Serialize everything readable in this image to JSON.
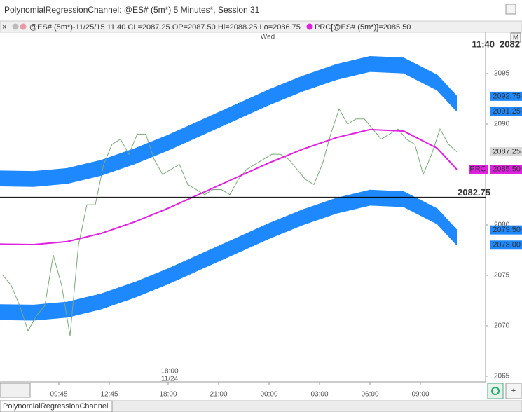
{
  "window": {
    "title": "PolynomialRegressionChannel: @ES# (5m*) 5 Minutes*, Session 31",
    "info": "@ES# (5m*)-11/25/15 11:40 CL=2087.25 OP=2087.50 Hi=2088.25 Lo=2086.75",
    "prc_info": "PRC[@ES# (5m*)]=2085.50",
    "corner_label": "M",
    "tab": "PolynomialRegressionChannel",
    "add_button": "+"
  },
  "chart_data": {
    "type": "line",
    "day_label": "Wed",
    "time_label": "11:40",
    "price_label": "2082",
    "session_label": [
      "18:00",
      "11/24"
    ],
    "xlim": [
      0,
      346
    ],
    "xticks": [
      {
        "value": 42,
        "label": "09:45"
      },
      {
        "value": 78,
        "label": "12:45"
      },
      {
        "value": 120,
        "label": "18:00"
      },
      {
        "value": 156,
        "label": "21:00"
      },
      {
        "value": 192,
        "label": "00:00"
      },
      {
        "value": 228,
        "label": "03:00"
      },
      {
        "value": 264,
        "label": "06:00"
      },
      {
        "value": 300,
        "label": "09:00"
      }
    ],
    "ylim": [
      2064.6,
      2099.2
    ],
    "yticks": [
      2065,
      2070,
      2075,
      2080,
      2090,
      2095
    ],
    "grid": false,
    "series": [
      {
        "color": "#7aa87a",
        "width": 1,
        "x": [
          2,
          8,
          14,
          20,
          26,
          32,
          38,
          44,
          50,
          56,
          62,
          68,
          74,
          80,
          86,
          92,
          98,
          104,
          110,
          116,
          122,
          128,
          134,
          140,
          146,
          152,
          158,
          164,
          170,
          176,
          182,
          188,
          194,
          200,
          206,
          212,
          218,
          224,
          230,
          236,
          242,
          248,
          254,
          260,
          266,
          272,
          278,
          284,
          290,
          296,
          302,
          308,
          314,
          320,
          326
        ],
        "values": [
          2075,
          2074,
          2072,
          2069.5,
          2071,
          2072,
          2077,
          2074,
          2069,
          2078,
          2082,
          2082,
          2086,
          2088,
          2088.5,
          2087,
          2089,
          2089,
          2086.5,
          2085,
          2085.5,
          2086,
          2084,
          2083.5,
          2083,
          2083.5,
          2083.5,
          2083,
          2084.5,
          2085.5,
          2086,
          2086.5,
          2087,
          2087,
          2086.5,
          2085.5,
          2084.5,
          2084,
          2086,
          2089,
          2091.5,
          2090,
          2090.5,
          2090.5,
          2089.5,
          2088.5,
          2089,
          2089.5,
          2088.5,
          2088,
          2085,
          2087,
          2089.5,
          2088,
          2087.25
        ]
      },
      {
        "color": "#e020e0",
        "width": 2,
        "x": [
          0,
          24,
          48,
          72,
          96,
          120,
          144,
          168,
          192,
          216,
          240,
          264,
          288,
          312,
          326
        ],
        "values": [
          2078.1,
          2078.05,
          2078.35,
          2079.15,
          2080.3,
          2081.65,
          2083.15,
          2084.65,
          2086.15,
          2087.5,
          2088.65,
          2089.45,
          2089.3,
          2087.6,
          2085.5
        ]
      },
      {
        "color": "#1e88ff",
        "width": 1,
        "fill_to": 3,
        "x": [
          0,
          24,
          48,
          72,
          96,
          120,
          144,
          168,
          192,
          216,
          240,
          264,
          288,
          312,
          326
        ],
        "values": [
          2085.35,
          2085.3,
          2085.6,
          2086.4,
          2087.55,
          2088.9,
          2090.4,
          2091.9,
          2093.4,
          2094.75,
          2095.9,
          2096.7,
          2096.55,
          2094.85,
          2092.75
        ]
      },
      {
        "color": "#1e88ff",
        "width": 1,
        "x": [
          0,
          24,
          48,
          72,
          96,
          120,
          144,
          168,
          192,
          216,
          240,
          264,
          288,
          312,
          326
        ],
        "values": [
          2083.85,
          2083.8,
          2084.1,
          2084.9,
          2086.05,
          2087.4,
          2088.9,
          2090.4,
          2091.9,
          2093.25,
          2094.4,
          2095.2,
          2095.05,
          2093.35,
          2091.25
        ]
      },
      {
        "color": "#1e88ff",
        "width": 1,
        "fill_to": 5,
        "x": [
          0,
          24,
          48,
          72,
          96,
          120,
          144,
          168,
          192,
          216,
          240,
          264,
          288,
          312,
          326
        ],
        "values": [
          2072.1,
          2072.05,
          2072.35,
          2073.15,
          2074.3,
          2075.65,
          2077.15,
          2078.65,
          2080.15,
          2081.5,
          2082.65,
          2083.45,
          2083.3,
          2081.6,
          2079.5
        ]
      },
      {
        "color": "#1e88ff",
        "width": 1,
        "x": [
          0,
          24,
          48,
          72,
          96,
          120,
          144,
          168,
          192,
          216,
          240,
          264,
          288,
          312,
          326
        ],
        "values": [
          2070.6,
          2070.55,
          2070.85,
          2071.65,
          2072.8,
          2074.15,
          2075.65,
          2077.15,
          2078.65,
          2080.0,
          2081.15,
          2081.95,
          2081.8,
          2080.1,
          2078.0
        ]
      }
    ],
    "hline": {
      "value": 2082.75,
      "label": "2082.75",
      "color": "#000000"
    },
    "markers": [
      {
        "value": 2092.75,
        "label": "2092.75",
        "color": "#1e88ff",
        "text_color": "#ffffff"
      },
      {
        "value": 2091.25,
        "label": "2091.25",
        "color": "#1e88ff",
        "text_color": "#ffffff"
      },
      {
        "value": 2087.25,
        "label": "2087.25",
        "color": "#d8d8d8",
        "text_color": "#000000"
      },
      {
        "value": 2085.5,
        "label": "2085.50",
        "color": "#e020e0",
        "text_color": "#ffffff",
        "tag": "PRC"
      },
      {
        "value": 2079.5,
        "label": "2079.50",
        "color": "#1e88ff",
        "text_color": "#ffffff"
      },
      {
        "value": 2078,
        "label": "2078.00",
        "color": "#1e88ff",
        "text_color": "#ffffff"
      }
    ]
  }
}
